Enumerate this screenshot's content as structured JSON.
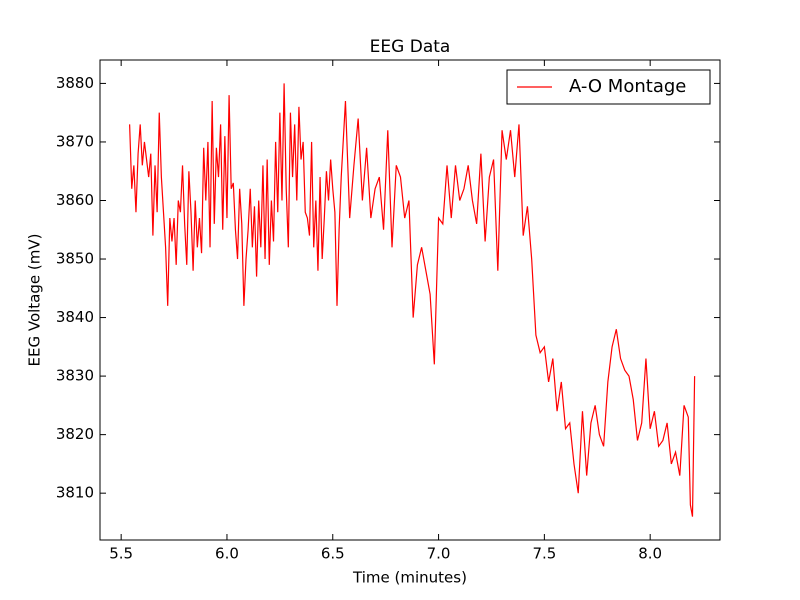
{
  "chart_data": {
    "type": "line",
    "title": "EEG Data",
    "x_label": "Time (minutes)",
    "y_label": "EEG Voltage (mV)",
    "x": [
      5.54,
      5.55,
      5.56,
      5.57,
      5.58,
      5.59,
      5.6,
      5.61,
      5.62,
      5.63,
      5.64,
      5.65,
      5.66,
      5.67,
      5.68,
      5.69,
      5.7,
      5.71,
      5.72,
      5.73,
      5.74,
      5.75,
      5.76,
      5.77,
      5.78,
      5.79,
      5.8,
      5.81,
      5.82,
      5.83,
      5.84,
      5.85,
      5.86,
      5.87,
      5.88,
      5.89,
      5.9,
      5.91,
      5.92,
      5.93,
      5.94,
      5.95,
      5.96,
      5.97,
      5.98,
      5.99,
      6.0,
      6.01,
      6.02,
      6.03,
      6.04,
      6.05,
      6.06,
      6.07,
      6.08,
      6.09,
      6.1,
      6.11,
      6.12,
      6.13,
      6.14,
      6.15,
      6.16,
      6.17,
      6.18,
      6.19,
      6.2,
      6.21,
      6.22,
      6.23,
      6.24,
      6.25,
      6.26,
      6.27,
      6.28,
      6.29,
      6.3,
      6.31,
      6.32,
      6.33,
      6.34,
      6.35,
      6.36,
      6.37,
      6.38,
      6.39,
      6.4,
      6.41,
      6.42,
      6.43,
      6.44,
      6.45,
      6.46,
      6.47,
      6.48,
      6.49,
      6.5,
      6.51,
      6.52,
      6.53,
      6.54,
      6.56,
      6.58,
      6.6,
      6.62,
      6.64,
      6.66,
      6.68,
      6.7,
      6.72,
      6.74,
      6.76,
      6.78,
      6.8,
      6.82,
      6.84,
      6.86,
      6.88,
      6.9,
      6.92,
      6.94,
      6.96,
      6.98,
      7.0,
      7.02,
      7.04,
      7.06,
      7.08,
      7.1,
      7.12,
      7.14,
      7.16,
      7.18,
      7.2,
      7.22,
      7.24,
      7.26,
      7.28,
      7.3,
      7.32,
      7.34,
      7.36,
      7.38,
      7.4,
      7.42,
      7.44,
      7.46,
      7.48,
      7.5,
      7.52,
      7.54,
      7.56,
      7.58,
      7.6,
      7.62,
      7.64,
      7.66,
      7.68,
      7.7,
      7.72,
      7.74,
      7.76,
      7.78,
      7.8,
      7.82,
      7.84,
      7.86,
      7.88,
      7.9,
      7.92,
      7.94,
      7.96,
      7.98,
      8.0,
      8.02,
      8.04,
      8.06,
      8.08,
      8.1,
      8.12,
      8.14,
      8.16,
      8.18,
      8.19,
      8.2,
      8.21
    ],
    "series": [
      {
        "name": "A-O Montage",
        "color": "#ff0000",
        "values": [
          3873,
          3862,
          3866,
          3858,
          3868,
          3873,
          3866,
          3870,
          3867,
          3864,
          3868,
          3854,
          3866,
          3858,
          3875,
          3864,
          3858,
          3852,
          3842,
          3857,
          3853,
          3857,
          3849,
          3860,
          3858,
          3866,
          3856,
          3849,
          3865,
          3858,
          3848,
          3860,
          3852,
          3857,
          3851,
          3869,
          3860,
          3870,
          3852,
          3877,
          3856,
          3869,
          3864,
          3873,
          3855,
          3871,
          3857,
          3878,
          3862,
          3863,
          3855,
          3850,
          3862,
          3856,
          3842,
          3850,
          3855,
          3862,
          3852,
          3859,
          3847,
          3860,
          3852,
          3866,
          3850,
          3867,
          3849,
          3860,
          3853,
          3870,
          3858,
          3875,
          3860,
          3880,
          3862,
          3852,
          3875,
          3864,
          3873,
          3860,
          3876,
          3867,
          3870,
          3858,
          3857,
          3854,
          3870,
          3852,
          3860,
          3848,
          3864,
          3850,
          3857,
          3865,
          3860,
          3867,
          3862,
          3858,
          3842,
          3855,
          3864,
          3877,
          3857,
          3866,
          3874,
          3860,
          3869,
          3857,
          3862,
          3864,
          3855,
          3872,
          3852,
          3866,
          3864,
          3857,
          3860,
          3840,
          3849,
          3852,
          3848,
          3844,
          3832,
          3857,
          3856,
          3866,
          3857,
          3866,
          3860,
          3862,
          3866,
          3860,
          3856,
          3868,
          3853,
          3864,
          3867,
          3848,
          3872,
          3867,
          3872,
          3864,
          3873,
          3854,
          3859,
          3850,
          3837,
          3834,
          3835,
          3829,
          3833,
          3824,
          3829,
          3821,
          3822,
          3815,
          3810,
          3824,
          3813,
          3822,
          3825,
          3820,
          3818,
          3829,
          3835,
          3838,
          3833,
          3831,
          3830,
          3826,
          3819,
          3822,
          3833,
          3821,
          3824,
          3818,
          3819,
          3822,
          3815,
          3817,
          3813,
          3825,
          3823,
          3808,
          3806,
          3830
        ]
      }
    ],
    "xlim": [
      5.4,
      8.33
    ],
    "ylim": [
      3802,
      3884
    ],
    "xticks": [
      5.5,
      {
        "value": 6,
        "label": "6.0"
      },
      6.5,
      {
        "value": 7,
        "label": "7.0"
      },
      7.5,
      {
        "value": 8,
        "label": "8.0"
      }
    ],
    "yticks": [
      3810,
      3820,
      3830,
      3840,
      3850,
      3860,
      3870,
      3880
    ],
    "legend": "upper right",
    "grid": false
  }
}
